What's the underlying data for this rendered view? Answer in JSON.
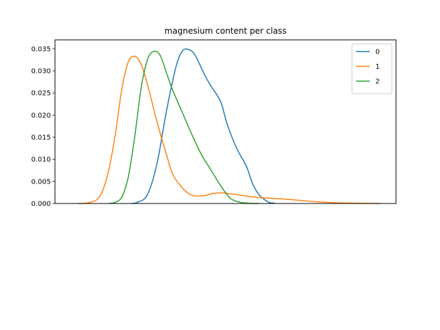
{
  "chart_data": {
    "type": "line",
    "title": "magnesium content per class",
    "xlabel": "",
    "ylabel": "",
    "ylim": [
      0,
      0.037
    ],
    "xlim": [
      63,
      170
    ],
    "y_ticks": [
      "0.000",
      "0.005",
      "0.010",
      "0.015",
      "0.020",
      "0.025",
      "0.030",
      "0.035"
    ],
    "x_tick_labels_visible": false,
    "grid": false,
    "legend_position": "top-right",
    "series": [
      {
        "name": "0",
        "color": "#1f77b4",
        "x": [
          87,
          89,
          92,
          95,
          98,
          101,
          103,
          105,
          107,
          110,
          112,
          115,
          117,
          120,
          123,
          125,
          127,
          130,
          132
        ],
        "y": [
          0,
          0.0003,
          0.002,
          0.009,
          0.021,
          0.031,
          0.0345,
          0.0348,
          0.0335,
          0.029,
          0.0265,
          0.023,
          0.018,
          0.0125,
          0.0085,
          0.0045,
          0.002,
          0.0003,
          0.0001
        ]
      },
      {
        "name": "1",
        "color": "#ff7f0e",
        "x": [
          70,
          73,
          76,
          78,
          80,
          82,
          84,
          86,
          88,
          90,
          92,
          95,
          98,
          100,
          103,
          105,
          107,
          110,
          112,
          115,
          118,
          120,
          125,
          130,
          135,
          140,
          145,
          150,
          155,
          160,
          165
        ],
        "y": [
          0,
          0.0001,
          0.0008,
          0.003,
          0.008,
          0.016,
          0.026,
          0.032,
          0.0333,
          0.0315,
          0.027,
          0.0185,
          0.011,
          0.0065,
          0.0035,
          0.0022,
          0.0017,
          0.0018,
          0.0022,
          0.0024,
          0.0022,
          0.002,
          0.0015,
          0.0012,
          0.001,
          0.0007,
          0.0004,
          0.0002,
          0.0001,
          5e-05,
          0
        ]
      },
      {
        "name": "2",
        "color": "#2ca02c",
        "x": [
          80,
          82,
          84,
          86,
          88,
          90,
          92,
          94,
          96,
          98,
          100,
          103,
          106,
          109,
          112,
          115,
          118,
          121,
          124,
          127
        ],
        "y": [
          0,
          0.0003,
          0.0015,
          0.006,
          0.015,
          0.026,
          0.0325,
          0.0344,
          0.0335,
          0.0295,
          0.0255,
          0.0205,
          0.0155,
          0.011,
          0.0075,
          0.004,
          0.0012,
          0.0003,
          5e-05,
          0
        ]
      }
    ]
  }
}
